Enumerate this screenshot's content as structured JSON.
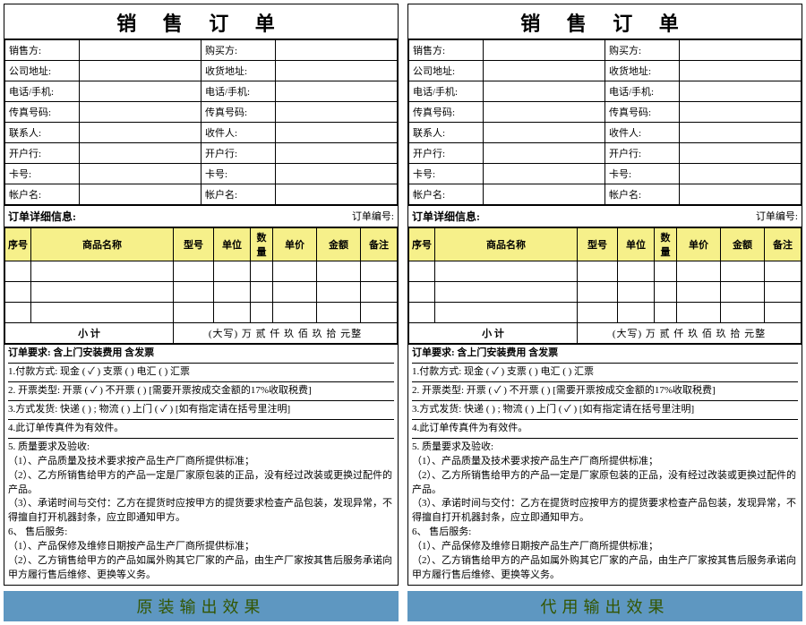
{
  "title": "销 售 订 单",
  "info_rows": [
    [
      "销售方:",
      "购买方:"
    ],
    [
      "公司地址:",
      "收货地址:"
    ],
    [
      "电话/手机:",
      "电话/手机:"
    ],
    [
      "传真号码:",
      "传真号码:"
    ],
    [
      "联系人:",
      "收件人:"
    ],
    [
      "开户行:",
      "开户行:"
    ],
    [
      "卡号:",
      "卡号:"
    ],
    [
      "帐户名:",
      "帐户名:"
    ]
  ],
  "detail_header": "订单详细信息:",
  "order_no_label": "订单编号:",
  "cols": [
    "序号",
    "商品名称",
    "型号",
    "单位",
    "数量",
    "单价",
    "金额",
    "备注"
  ],
  "subtotal_label": "小 计",
  "subtotal_text": "(大写) 万 贰 仟 玖 佰 玖 拾 元整",
  "req_title": "订单要求: 含上门安装费用 含发票",
  "req_lines": [
    "1.付款方式: 现金 (   ✓  ) 支票 (       ) 电汇 (     ) 汇票",
    "2. 开票类型:  开票 (    ✓  )  不开票 (        )   [需要开票按成交金额的17%收取税费]",
    "3.方式发货: 快递 (        ) ; 物流 (           )  上门 (  ✓  )      [如有指定请在括号里注明]",
    "4.此订单传真件为有效件。"
  ],
  "terms": [
    "5. 质量要求及验收:",
    "（1）、产品质量及技术要求按产品生产厂商所提供标准；",
    "（2）、乙方所销售给甲方的产品一定是厂家原包装的正品，没有经过改装或更换过配件的产品。",
    "（3）、承诺时间与交付：乙方在提货时应按甲方的提货要求检查产品包装，发现异常，不得擅自打开机器封条，应立即通知甲方。",
    "6、 售后服务:",
    "（1）、产品保修及维修日期按产品生产厂商所提供标准；",
    "（2）、乙方销售给甲方的产品如属外购其它厂家的产品，由生产厂家按其售后服务承诺向甲方履行售后维修、更换等义务。"
  ],
  "caption_left": "原装输出效果",
  "caption_right": "代用输出效果"
}
